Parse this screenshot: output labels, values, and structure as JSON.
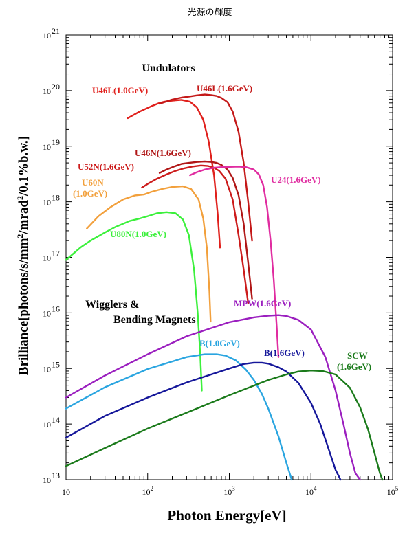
{
  "chart_data": {
    "type": "line",
    "title": "光源の輝度",
    "xlabel": "Photon Energy[eV]",
    "ylabel": "Brilliance[photons/s/mm²/mrad²/0.1%b.w.]",
    "ylabel_parts": {
      "a": "Brilliance[photons/s/mm",
      "b": "/mrad",
      "c": "/0.1%b.w.]",
      "sup": "2"
    },
    "xscale": "log",
    "yscale": "log",
    "xlim": [
      10,
      100000
    ],
    "ylim": [
      10000000000000.0,
      1e+21
    ],
    "xticks": [
      {
        "v": 10,
        "base": "10",
        "exp": ""
      },
      {
        "v": 100,
        "base": "10",
        "exp": "2"
      },
      {
        "v": 1000,
        "base": "10",
        "exp": "3"
      },
      {
        "v": 10000,
        "base": "10",
        "exp": "4"
      },
      {
        "v": 100000,
        "base": "10",
        "exp": "5"
      }
    ],
    "yticks": [
      {
        "v": 10000000000000.0,
        "base": "10",
        "exp": "13"
      },
      {
        "v": 100000000000000.0,
        "base": "10",
        "exp": "14"
      },
      {
        "v": 1000000000000000.0,
        "base": "10",
        "exp": "15"
      },
      {
        "v": 1e+16,
        "base": "10",
        "exp": "16"
      },
      {
        "v": 1e+17,
        "base": "10",
        "exp": "17"
      },
      {
        "v": 1e+18,
        "base": "10",
        "exp": "18"
      },
      {
        "v": 1e+19,
        "base": "10",
        "exp": "19"
      },
      {
        "v": 1e+20,
        "base": "10",
        "exp": "20"
      },
      {
        "v": 1e+21,
        "base": "10",
        "exp": "21"
      }
    ],
    "headings": [
      "Undulators",
      "Wigglers &",
      "Bending Magnets"
    ],
    "series": [
      {
        "name": "U46L(1.0GeV)",
        "color": "#e0201c",
        "x": [
          57,
          80,
          110,
          140,
          160,
          200,
          260,
          330,
          400,
          480,
          560,
          650,
          720,
          770
        ],
        "y": [
          3.2e+19,
          4.2e+19,
          5.2e+19,
          6e+19,
          6.3e+19,
          6.6e+19,
          6.8e+19,
          6.3e+19,
          5e+19,
          3e+19,
          1.2e+19,
          3e+18,
          6e+17,
          1.5e+17
        ]
      },
      {
        "name": "U46L(1.6GeV)",
        "color": "#c41818",
        "x": [
          140,
          160,
          200,
          260,
          320,
          400,
          500,
          600,
          700,
          800,
          950,
          1100,
          1300,
          1500,
          1700,
          1900
        ],
        "y": [
          5.8e+19,
          6.2e+19,
          6.9e+19,
          7.5e+19,
          7.8e+19,
          8.2e+19,
          8.5e+19,
          8.3e+19,
          8e+19,
          7.4e+19,
          6.2e+19,
          4.2e+19,
          1.8e+19,
          5e+18,
          1e+18,
          2e+17
        ]
      },
      {
        "name": "U52N(1.6GeV)",
        "color": "#cc1b1b",
        "x": [
          85,
          100,
          130,
          170,
          220,
          280,
          350,
          450,
          550,
          650,
          750,
          900,
          1100,
          1300,
          1500,
          1700
        ],
        "y": [
          1.8e+18,
          2.1e+18,
          2.6e+18,
          3.1e+18,
          3.6e+18,
          4e+18,
          4.3e+18,
          4.5e+18,
          4.4e+18,
          4.1e+18,
          3.6e+18,
          2.6e+18,
          1.1e+18,
          2.5e+17,
          6e+16,
          1.5e+16
        ]
      },
      {
        "name": "U46N(1.6GeV)",
        "color": "#b01616",
        "x": [
          140,
          170,
          210,
          260,
          320,
          400,
          500,
          600,
          700,
          800,
          950,
          1100,
          1300,
          1500,
          1700,
          1900
        ],
        "y": [
          3.3e+18,
          3.8e+18,
          4.3e+18,
          4.8e+18,
          5e+18,
          5.2e+18,
          5.3e+18,
          5.2e+18,
          5e+18,
          4.6e+18,
          3.8e+18,
          2.7e+18,
          1.3e+18,
          4e+17,
          8e+16,
          1.8e+16
        ]
      },
      {
        "name": "U24(1.6GeV)",
        "color": "#e02ca0",
        "x": [
          330,
          400,
          500,
          650,
          800,
          1000,
          1300,
          1600,
          2000,
          2300,
          2600,
          2900,
          3200,
          3500,
          3800,
          4000
        ],
        "y": [
          3e+18,
          3.4e+18,
          3.8e+18,
          4.1e+18,
          4.2e+18,
          4.25e+18,
          4.3e+18,
          4.2e+18,
          3.8e+18,
          3.1e+18,
          2e+18,
          8e+17,
          2e+17,
          4e+16,
          6000000000000000.0,
          1600000000000000.0
        ]
      },
      {
        "name": "U60N\n(1.0GeV)",
        "color": "#f2a03c",
        "x": [
          18,
          25,
          35,
          50,
          70,
          90,
          110,
          150,
          200,
          270,
          340,
          420,
          480,
          530,
          570,
          590
        ],
        "y": [
          3.3e+17,
          5.5e+17,
          8e+17,
          1.1e+18,
          1.3e+18,
          1.35e+18,
          1.5e+18,
          1.7e+18,
          1.85e+18,
          1.9e+18,
          1.7e+18,
          1.1e+18,
          5e+17,
          1.5e+17,
          2.5e+16,
          7000000000000000.0
        ]
      },
      {
        "name": "U80N(1.0GeV)",
        "color": "#3cf03c",
        "x": [
          10,
          15,
          20,
          30,
          40,
          60,
          80,
          100,
          130,
          170,
          220,
          270,
          320,
          370,
          410,
          440,
          460
        ],
        "y": [
          9e+16,
          1.5e+17,
          2e+17,
          2.8e+17,
          3.5e+17,
          4.5e+17,
          5e+17,
          5.5e+17,
          6.2e+17,
          6.5e+17,
          6.2e+17,
          4.8e+17,
          2.5e+17,
          6e+16,
          1e+16,
          1800000000000000.0,
          400000000000000.0
        ]
      },
      {
        "name": "MPW(1.6GeV)",
        "color": "#9b1fbf",
        "x": [
          10,
          30,
          100,
          300,
          1000,
          2000,
          3000,
          4000,
          5000,
          7000,
          10000,
          15000,
          20000,
          25000,
          30000,
          35000,
          40000
        ],
        "y": [
          300000000000000.0,
          750000000000000.0,
          1800000000000000.0,
          3800000000000000.0,
          6800000000000000.0,
          8300000000000000.0,
          8900000000000000.0,
          9100000000000000.0,
          8800000000000000.0,
          7500000000000000.0,
          5000000000000000.0,
          1600000000000000.0,
          400000000000000.0,
          100000000000000.0,
          30000000000000.0,
          13000000000000.0,
          10000000000000.0
        ]
      },
      {
        "name": "B(1.0GeV)",
        "color": "#2aa5e0",
        "x": [
          10,
          30,
          100,
          300,
          500,
          700,
          900,
          1200,
          1600,
          2000,
          2500,
          3000,
          4000,
          5000,
          5800
        ],
        "y": [
          190000000000000.0,
          460000000000000.0,
          980000000000000.0,
          1600000000000000.0,
          1800000000000000.0,
          1800000000000000.0,
          1700000000000000.0,
          1400000000000000.0,
          950000000000000.0,
          620000000000000.0,
          350000000000000.0,
          190000000000000.0,
          60000000000000.0,
          20000000000000.0,
          10000000000000.0
        ]
      },
      {
        "name": "B(1.6GeV)",
        "color": "#15179a",
        "x": [
          10,
          30,
          100,
          300,
          1000,
          1500,
          2000,
          2500,
          3000,
          4000,
          5000,
          7000,
          10000,
          13000,
          16000,
          20000,
          23000
        ],
        "y": [
          57000000000000.0,
          140000000000000.0,
          300000000000000.0,
          560000000000000.0,
          1000000000000000.0,
          1200000000000000.0,
          1270000000000000.0,
          1270000000000000.0,
          1220000000000000.0,
          1050000000000000.0,
          880000000000000.0,
          550000000000000.0,
          240000000000000.0,
          100000000000000.0,
          40000000000000.0,
          15000000000000.0,
          10000000000000.0
        ]
      },
      {
        "name": "SCW\n(1.6GeV)",
        "color": "#1a7a1a",
        "x": [
          10,
          30,
          100,
          300,
          1000,
          3000,
          5000,
          7000,
          10000,
          14000,
          20000,
          30000,
          40000,
          50000,
          60000,
          70000,
          75000
        ],
        "y": [
          17500000000000.0,
          37000000000000.0,
          83000000000000.0,
          160000000000000.0,
          330000000000000.0,
          620000000000000.0,
          780000000000000.0,
          880000000000000.0,
          920000000000000.0,
          900000000000000.0,
          780000000000000.0,
          450000000000000.0,
          200000000000000.0,
          80000000000000.0,
          30000000000000.0,
          13000000000000.0,
          10000000000000.0
        ]
      }
    ]
  }
}
